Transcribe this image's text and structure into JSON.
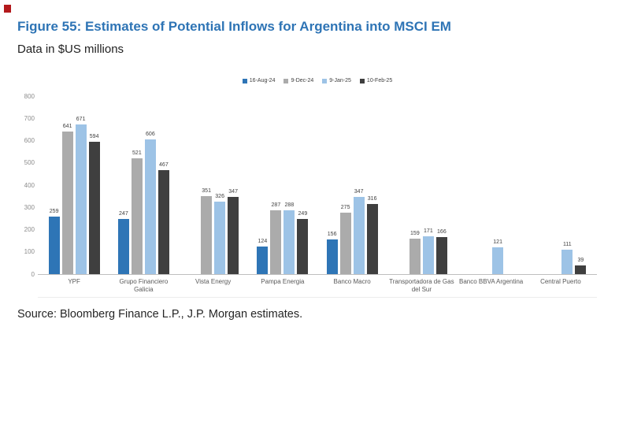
{
  "figure": {
    "title": "Figure 55: Estimates of Potential Inflows for Argentina into MSCI EM",
    "subtitle": "Data in $US millions",
    "source": "Source: Bloomberg Finance L.P., J.P. Morgan estimates."
  },
  "colors": {
    "title_blue": "#2E74B5",
    "corner_red": "#b3191c",
    "axis_text": "#8c8c8c",
    "category_text": "#595959",
    "data_label": "#404040",
    "baseline": "#bfbfbf"
  },
  "chart_data": {
    "type": "bar",
    "title": "Figure 55: Estimates of Potential Inflows for Argentina into MSCI EM",
    "subtitle": "Data in $US millions",
    "xlabel": "",
    "ylabel": "",
    "ylim": [
      0,
      800
    ],
    "ytick_step": 100,
    "grid": false,
    "legend_position": "top",
    "categories": [
      "YPF",
      "Grupo Financiero Galicia",
      "Vista Energy",
      "Pampa Energia",
      "Banco Macro",
      "Transportadora de Gas del Sur",
      "Banco BBVA Argentina",
      "Central Puerto"
    ],
    "series": [
      {
        "name": "16-Aug-24",
        "color": "#2E75B6",
        "values": [
          259,
          247,
          null,
          124,
          156,
          null,
          null,
          null
        ]
      },
      {
        "name": "9-Dec-24",
        "color": "#ABABAB",
        "values": [
          641,
          521,
          351,
          287,
          275,
          159,
          null,
          null
        ]
      },
      {
        "name": "9-Jan-25",
        "color": "#9DC3E6",
        "values": [
          671,
          606,
          326,
          288,
          347,
          171,
          121,
          111
        ]
      },
      {
        "name": "10-Feb-25",
        "color": "#3F3F3F",
        "values": [
          594,
          467,
          347,
          249,
          316,
          166,
          null,
          39
        ]
      }
    ]
  }
}
